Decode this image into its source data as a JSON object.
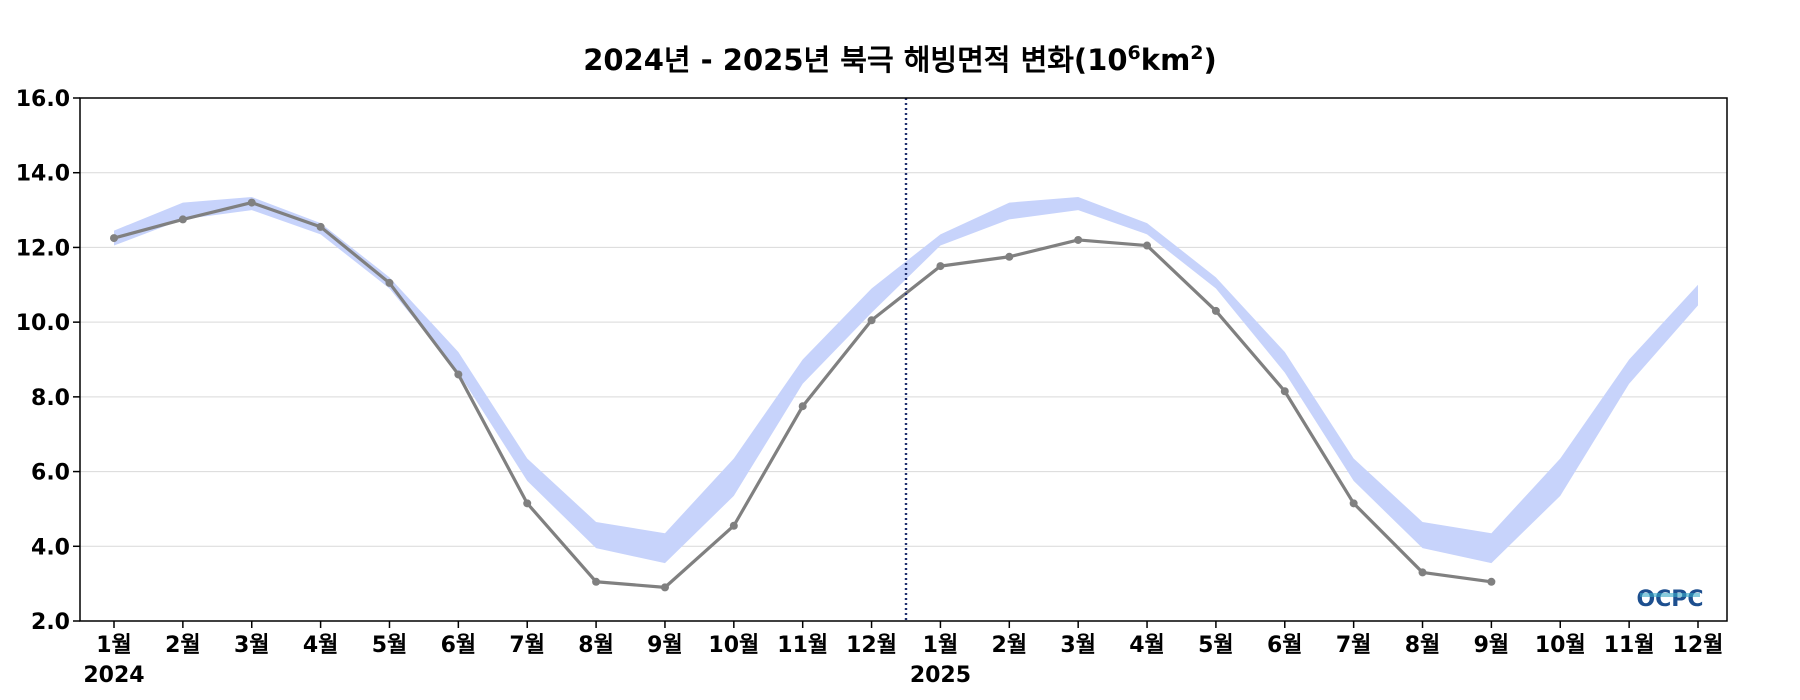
{
  "chart_data": {
    "type": "line",
    "title": {
      "main": "2024년 - 2025년 북극 해빙면적 변화(10",
      "sup1": "6",
      "mid": "km",
      "sup2": "2",
      "end": ")"
    },
    "y_ticks": [
      "16.0",
      "14.0",
      "12.0",
      "10.0",
      "8.0",
      "6.0",
      "4.0",
      "2.0"
    ],
    "ylim": [
      2.0,
      16.0
    ],
    "categories": [
      "1월",
      "2월",
      "3월",
      "4월",
      "5월",
      "6월",
      "7월",
      "8월",
      "9월",
      "10월",
      "11월",
      "12월",
      "1월",
      "2월",
      "3월",
      "4월",
      "5월",
      "6월",
      "7월",
      "8월",
      "9월",
      "10월",
      "11월",
      "12월"
    ],
    "year_labels": [
      "2024",
      "2025"
    ],
    "year_divider_between": [
      12,
      13
    ],
    "grid": "horizontal",
    "series": [
      {
        "kind": "observed",
        "color": "#808080",
        "values": [
          12.25,
          12.75,
          13.2,
          12.55,
          11.05,
          8.6,
          5.15,
          3.05,
          2.9,
          4.55,
          7.75,
          10.05,
          11.5,
          11.75,
          12.2,
          12.05,
          10.3,
          8.15,
          5.15,
          3.3,
          3.05,
          null,
          null,
          null
        ]
      },
      {
        "kind": "range-band",
        "color": "#c7d3fb",
        "upper": [
          12.45,
          13.2,
          13.35,
          12.65,
          11.2,
          9.2,
          6.35,
          4.65,
          4.35,
          6.35,
          9.0,
          10.9,
          12.35,
          13.2,
          13.35,
          12.65,
          11.2,
          9.2,
          6.35,
          4.65,
          4.35,
          6.35,
          9.0,
          11.0
        ],
        "lower": [
          12.05,
          12.75,
          13.0,
          12.35,
          10.9,
          8.65,
          5.75,
          3.95,
          3.55,
          5.35,
          8.35,
          10.25,
          12.05,
          12.75,
          13.0,
          12.35,
          10.9,
          8.65,
          5.75,
          3.95,
          3.55,
          5.35,
          8.35,
          10.45
        ]
      }
    ],
    "logo": "OCPC",
    "colors": {
      "axis": "#000000",
      "grid": "#d9d9d9",
      "divider": "#1f2f6e",
      "logo_dark": "#1d4f8f",
      "logo_light": "#38a9c7"
    }
  }
}
